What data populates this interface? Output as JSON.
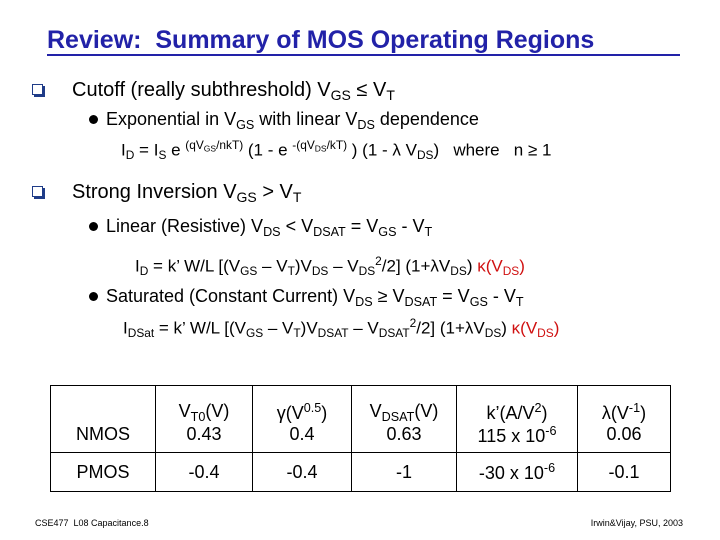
{
  "title": "Review:  Summary of MOS Operating Regions",
  "items": [
    {
      "text": [
        "Cutoff (really subthreshold) V",
        "GS",
        " ≤ V",
        "T"
      ],
      "sub_items": [
        {
          "text": [
            "Exponential in V",
            "GS",
            " with linear V",
            "DS",
            " dependence"
          ],
          "formula": [
            "I",
            "D",
            " = I",
            "S",
            " e ",
            "(qV",
            "GS",
            "/nkT)",
            " (1 - e ",
            "-(qV",
            "DS",
            "/kT)",
            " ) (1 - λ V",
            "DS",
            ")   where   n ≥ 1"
          ]
        }
      ]
    },
    {
      "text": [
        "Strong Inversion V",
        "GS",
        " > V",
        "T"
      ],
      "sub_items": [
        {
          "text": [
            "Linear (Resistive) V",
            "DS",
            " < V",
            "DSAT",
            " = V",
            "GS",
            " - V",
            "T"
          ],
          "formula": [
            "I",
            "D",
            " = k’ W/L [(V",
            "GS",
            " – V",
            "T",
            ")V",
            "DS",
            " – V",
            "DS",
            "2",
            "/2] (1+λV",
            "DS",
            ") ",
            "κ(V",
            "DS",
            ")"
          ]
        },
        {
          "text": [
            "Saturated (Constant Current) V",
            "DS",
            " ≥ V",
            "DSAT",
            " = V",
            "GS",
            " - V",
            "T"
          ],
          "formula": [
            "I",
            "DSat",
            " = k’ W/L [(V",
            "GS",
            " – V",
            "T",
            ")V",
            "DSAT",
            " – V",
            "DSAT",
            "2",
            "/2] (1+λV",
            "DS",
            ") ",
            "κ(V",
            "DS",
            ")"
          ]
        }
      ]
    }
  ],
  "table": {
    "header": [
      [
        "V",
        "T0",
        "(V)"
      ],
      [
        "γ(V",
        "0.5",
        ")"
      ],
      [
        "V",
        "DSAT",
        "(V)"
      ],
      [
        "k’(A/V",
        "2",
        ")"
      ],
      [
        "λ(V",
        "-1",
        ")"
      ]
    ],
    "rows": [
      [
        "NMOS",
        0.43,
        0.4,
        0.63,
        [
          "115 x 10",
          "-6"
        ],
        0.06
      ],
      [
        "PMOS",
        -0.4,
        -0.4,
        -1,
        [
          "-30 x 10",
          "-6"
        ],
        -0.1
      ]
    ]
  },
  "footer": {
    "left": "CSE477  L08 Capacitance.8",
    "right": "Irwin&Vijay, PSU, 2003"
  }
}
